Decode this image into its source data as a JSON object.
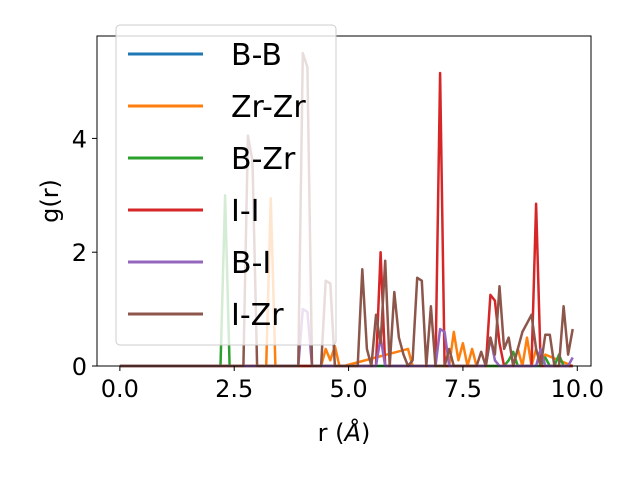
{
  "chart_data": {
    "type": "line",
    "title": "",
    "xlabel": "r ($\\AA$)",
    "xlabel_display": {
      "main": "r (",
      "symbol": "Å",
      "close": ")"
    },
    "ylabel": "g(r)",
    "xlim": [
      -0.5,
      10.3
    ],
    "ylim": [
      0,
      5.8
    ],
    "xticks": [
      0.0,
      2.5,
      5.0,
      7.5,
      10.0
    ],
    "xtick_labels": [
      "0.0",
      "2.5",
      "5.0",
      "7.5",
      "10.0"
    ],
    "yticks": [
      0,
      2,
      4
    ],
    "ytick_labels": [
      "0",
      "2",
      "4"
    ],
    "grid": false,
    "legend_position": "upper-left",
    "series": [
      {
        "name": "B-B",
        "color": "#1f77b4",
        "x": [
          0.0,
          9.9
        ],
        "y": [
          0,
          0
        ]
      },
      {
        "name": "Zr-Zr",
        "color": "#ff7f0e",
        "x": [
          0.0,
          3.2,
          3.3,
          3.4,
          4.4,
          4.5,
          4.6,
          4.7,
          4.8,
          4.9,
          6.3,
          6.4,
          6.5,
          7.2,
          7.3,
          7.4,
          7.5,
          7.6,
          7.7,
          7.8,
          8.6,
          8.7,
          8.8,
          8.9,
          9.0,
          9.1,
          9.2,
          9.3,
          9.9
        ],
        "y": [
          0,
          0,
          2.95,
          0,
          0,
          0.3,
          0.1,
          0.35,
          0,
          0,
          0.3,
          0,
          0,
          0,
          0.6,
          0.1,
          0.4,
          0,
          0.3,
          0,
          0,
          0.3,
          0,
          0.5,
          0,
          0.3,
          0,
          0.2,
          0
        ]
      },
      {
        "name": "B-Zr",
        "color": "#2ca02c",
        "x": [
          0.0,
          2.2,
          2.3,
          2.4,
          8.4,
          8.5,
          8.6,
          8.7,
          9.2,
          9.3,
          9.4,
          9.5,
          9.6,
          9.7,
          9.9
        ],
        "y": [
          0,
          0,
          3.0,
          0,
          0,
          0.1,
          0.25,
          0,
          0,
          0.15,
          0,
          0,
          0.2,
          0,
          0
        ]
      },
      {
        "name": "I-I",
        "color": "#d62728",
        "x": [
          0.0,
          5.6,
          5.7,
          5.8,
          6.9,
          7.0,
          7.1,
          8.0,
          8.1,
          8.2,
          8.3,
          8.4,
          9.0,
          9.1,
          9.2,
          9.9
        ],
        "y": [
          0,
          0,
          2.0,
          0,
          0,
          5.15,
          0,
          0,
          1.25,
          1.15,
          0.4,
          0,
          0,
          2.85,
          0,
          0
        ]
      },
      {
        "name": "B-I",
        "color": "#9467bd",
        "x": [
          0.0,
          3.9,
          4.0,
          4.1,
          4.2,
          5.6,
          5.7,
          5.8,
          6.9,
          7.0,
          7.1,
          7.2,
          8.0,
          8.1,
          8.2,
          8.3,
          9.1,
          9.2,
          9.3,
          9.8,
          9.9
        ],
        "y": [
          0,
          0,
          1.0,
          0.95,
          0,
          0,
          0.5,
          0,
          0,
          0.65,
          0.6,
          0,
          0,
          0.5,
          0.1,
          0,
          0,
          0.3,
          0,
          0,
          0.15
        ]
      },
      {
        "name": "I-Zr",
        "color": "#8c564b",
        "x": [
          0.0,
          2.7,
          2.8,
          2.9,
          3.0,
          3.9,
          4.0,
          4.1,
          4.2,
          4.4,
          4.5,
          4.6,
          4.7,
          5.2,
          5.3,
          5.4,
          5.5,
          5.6,
          5.7,
          5.8,
          5.9,
          6.0,
          6.1,
          6.2,
          6.3,
          6.4,
          6.5,
          6.6,
          6.7,
          6.8,
          6.9,
          7.1,
          7.2,
          7.3,
          7.8,
          7.9,
          8.0,
          8.1,
          8.2,
          8.3,
          8.4,
          8.5,
          8.6,
          8.7,
          8.8,
          8.9,
          9.0,
          9.1,
          9.2,
          9.3,
          9.4,
          9.5,
          9.6,
          9.7,
          9.8,
          9.9
        ],
        "y": [
          0,
          0,
          4.05,
          3.6,
          0,
          0,
          5.5,
          5.25,
          0,
          0,
          1.5,
          1.45,
          0,
          0,
          1.7,
          0.3,
          0,
          0.9,
          0.4,
          1.85,
          0,
          1.3,
          0.5,
          0.2,
          0,
          0.1,
          1.55,
          1.5,
          0,
          1.05,
          0,
          0,
          0.3,
          0,
          0,
          0.25,
          0,
          0.5,
          0.2,
          1.4,
          0.3,
          0.5,
          0,
          0.3,
          0.6,
          0.75,
          0.9,
          0.3,
          0,
          0.55,
          0.55,
          0,
          0,
          1.05,
          0.2,
          0.65
        ]
      }
    ]
  }
}
